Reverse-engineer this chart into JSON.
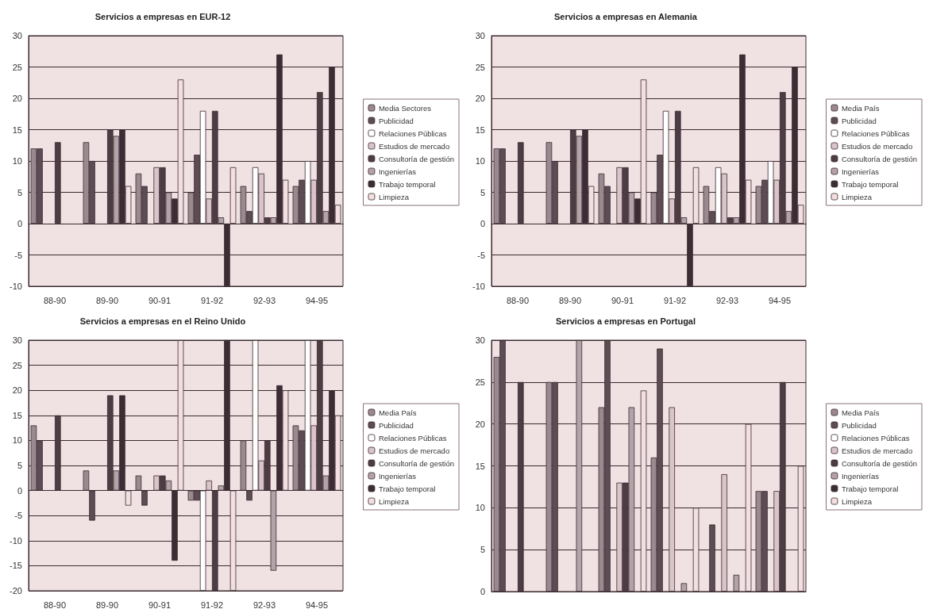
{
  "chart_data": [
    {
      "type": "bar",
      "title": "Servicios a empresas en EUR-12",
      "categories": [
        "88-90",
        "89-90",
        "90-91",
        "91-92",
        "92-93",
        "94-95"
      ],
      "ylim": [
        -10,
        30
      ],
      "yticks": [
        -10,
        -5,
        0,
        5,
        10,
        15,
        20,
        25,
        30
      ],
      "grid": "y",
      "legend": "right",
      "series": [
        {
          "name": "Media Sectores",
          "color": "#9a8a90",
          "values": [
            12,
            13,
            8,
            5,
            6,
            6
          ]
        },
        {
          "name": "Publicidad",
          "color": "#5e4c55",
          "values": [
            12,
            10,
            6,
            11,
            2,
            7
          ]
        },
        {
          "name": "Relaciones Públicas",
          "color": "#ffffff",
          "values": [
            null,
            null,
            null,
            18,
            9,
            10
          ]
        },
        {
          "name": "Estudios de mercado",
          "color": "#d9c5c9",
          "values": [
            null,
            null,
            9,
            4,
            8,
            7
          ]
        },
        {
          "name": "Consultoría de gestión",
          "color": "#4e3c45",
          "values": [
            13,
            15,
            9,
            18,
            1,
            21
          ]
        },
        {
          "name": "Ingenierías",
          "color": "#b3a2a8",
          "values": [
            null,
            14,
            5,
            1,
            1,
            2
          ]
        },
        {
          "name": "Trabajo temporal",
          "color": "#3c2c34",
          "values": [
            null,
            15,
            4,
            -10,
            27,
            25
          ]
        },
        {
          "name": "Limpieza",
          "color": "#f1dfe2",
          "values": [
            null,
            6,
            23,
            9,
            7,
            3
          ]
        }
      ]
    },
    {
      "type": "bar",
      "title": "Servicios a empresas en Alemania",
      "categories": [
        "88-90",
        "89-90",
        "90-91",
        "91-92",
        "92-93",
        "94-95"
      ],
      "ylim": [
        -10,
        30
      ],
      "yticks": [
        -10,
        -5,
        0,
        5,
        10,
        15,
        20,
        25,
        30
      ],
      "grid": "y",
      "legend": "right",
      "series": [
        {
          "name": "Media País",
          "color": "#9a8a90",
          "values": [
            12,
            13,
            8,
            5,
            6,
            6
          ]
        },
        {
          "name": "Publicidad",
          "color": "#5e4c55",
          "values": [
            12,
            10,
            6,
            11,
            2,
            7
          ]
        },
        {
          "name": "Relaciones Públicas",
          "color": "#ffffff",
          "values": [
            null,
            null,
            null,
            18,
            9,
            10
          ]
        },
        {
          "name": "Estudios de mercado",
          "color": "#d9c5c9",
          "values": [
            null,
            null,
            9,
            4,
            8,
            7
          ]
        },
        {
          "name": "Consultoría de gestión",
          "color": "#4e3c45",
          "values": [
            13,
            15,
            9,
            18,
            1,
            21
          ]
        },
        {
          "name": "Ingenierías",
          "color": "#b3a2a8",
          "values": [
            null,
            14,
            5,
            1,
            1,
            2
          ]
        },
        {
          "name": "Trabajo temporal",
          "color": "#3c2c34",
          "values": [
            null,
            15,
            4,
            -10,
            27,
            25
          ]
        },
        {
          "name": "Limpieza",
          "color": "#f1dfe2",
          "values": [
            null,
            6,
            23,
            9,
            7,
            3
          ]
        }
      ]
    },
    {
      "type": "bar",
      "title": "Servicios a empresas en el Reino Unido",
      "categories": [
        "88-90",
        "89-90",
        "90-91",
        "91-92",
        "92-93",
        "94-95"
      ],
      "ylim": [
        -20,
        30
      ],
      "yticks": [
        -20,
        -15,
        -10,
        -5,
        0,
        5,
        10,
        15,
        20,
        25,
        30
      ],
      "grid": "y",
      "legend": "right",
      "series": [
        {
          "name": "Media País",
          "color": "#9a8a90",
          "values": [
            13,
            4,
            3,
            -2,
            10,
            13
          ]
        },
        {
          "name": "Publicidad",
          "color": "#5e4c55",
          "values": [
            10,
            -6,
            -3,
            -2,
            -2,
            12
          ]
        },
        {
          "name": "Relaciones Públicas",
          "color": "#ffffff",
          "values": [
            null,
            null,
            null,
            -20,
            30,
            30
          ]
        },
        {
          "name": "Estudios de mercado",
          "color": "#d9c5c9",
          "values": [
            null,
            null,
            3,
            2,
            6,
            13
          ]
        },
        {
          "name": "Consultoría de gestión",
          "color": "#4e3c45",
          "values": [
            15,
            19,
            3,
            -20,
            10,
            30
          ]
        },
        {
          "name": "Ingenierías",
          "color": "#b3a2a8",
          "values": [
            null,
            4,
            2,
            1,
            -16,
            3
          ]
        },
        {
          "name": "Trabajo temporal",
          "color": "#3c2c34",
          "values": [
            null,
            19,
            -14,
            30,
            21,
            20
          ]
        },
        {
          "name": "Limpieza",
          "color": "#f1dfe2",
          "values": [
            null,
            -3,
            30,
            -20,
            20,
            15
          ]
        }
      ]
    },
    {
      "type": "bar",
      "title": "Servicios a empresas en Portugal",
      "categories": [
        null,
        null,
        null,
        null,
        null,
        null
      ],
      "ylim": [
        0,
        30
      ],
      "yticks": [
        0,
        5,
        10,
        15,
        20,
        25,
        30
      ],
      "grid": "y",
      "legend": "right",
      "series": [
        {
          "name": "Media País",
          "color": "#9a8a90",
          "values": [
            28,
            25,
            22,
            16,
            null,
            12
          ]
        },
        {
          "name": "Publicidad",
          "color": "#5e4c55",
          "values": [
            30,
            25,
            30,
            29,
            8,
            12
          ]
        },
        {
          "name": "Relaciones Públicas",
          "color": "#ffffff",
          "values": [
            null,
            null,
            null,
            null,
            null,
            null
          ]
        },
        {
          "name": "Estudios de mercado",
          "color": "#d9c5c9",
          "values": [
            null,
            null,
            13,
            22,
            14,
            12
          ]
        },
        {
          "name": "Consultoría de gestión",
          "color": "#4e3c45",
          "values": [
            25,
            null,
            13,
            null,
            null,
            25
          ]
        },
        {
          "name": "Ingenierías",
          "color": "#b3a2a8",
          "values": [
            null,
            30,
            22,
            1,
            2,
            null
          ]
        },
        {
          "name": "Trabajo temporal",
          "color": "#3c2c34",
          "values": [
            null,
            null,
            null,
            null,
            null,
            null
          ]
        },
        {
          "name": "Limpieza",
          "color": "#f1dfe2",
          "values": [
            null,
            null,
            24,
            10,
            20,
            15
          ]
        }
      ]
    }
  ]
}
